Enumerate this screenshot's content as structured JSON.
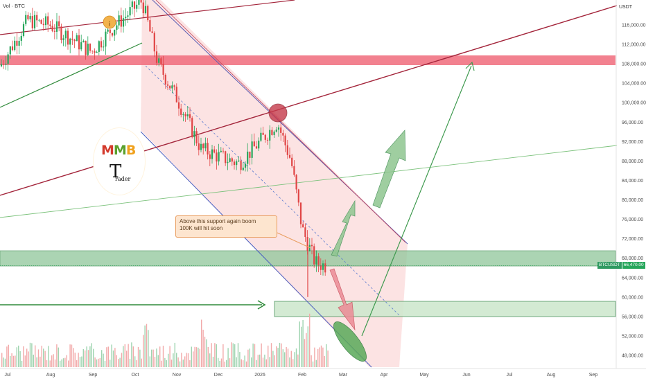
{
  "header": {
    "series_label": "Vol · BTC",
    "unit_label": "USDT"
  },
  "annotation": {
    "text_line1": "Above this support again boom",
    "text_line2": "100K will hit soon"
  },
  "price_tag": {
    "symbol": "BTCUSDT",
    "value": "66,470.00"
  },
  "logo": {
    "mark_letters": "MMB",
    "trader_letter": "T",
    "trader_rest": "rader"
  },
  "chart_data": {
    "type": "candlestick",
    "symbol": "BTCUSDT",
    "x_tick_labels": [
      "Jul",
      "Aug",
      "Sep",
      "Oct",
      "Nov",
      "Dec",
      "2026",
      "Feb",
      "Mar",
      "Apr",
      "May",
      "Jun",
      "Jul",
      "Aug",
      "Sep"
    ],
    "y_tick_labels": [
      "116,000.00",
      "112,000.00",
      "108,000.00",
      "104,000.00",
      "100,000.00",
      "96,000.00",
      "92,000.00",
      "88,000.00",
      "84,000.00",
      "80,000.00",
      "76,000.00",
      "72,000.00",
      "68,000.00",
      "64,000.00",
      "60,000.00",
      "56,000.00",
      "52,000.00",
      "48,000.00"
    ],
    "ylim": [
      46000,
      120000
    ],
    "last_price": 66470,
    "price_path": [
      {
        "x": "Jul",
        "p": 107500
      },
      {
        "x": "mid-Jul",
        "p": 117000
      },
      {
        "x": "Aug",
        "p": 116000
      },
      {
        "x": "mid-Aug",
        "p": 113500
      },
      {
        "x": "Sep",
        "p": 110500
      },
      {
        "x": "mid-Sep",
        "p": 115000
      },
      {
        "x": "Oct",
        "p": 121000
      },
      {
        "x": "mid-Oct",
        "p": 108000
      },
      {
        "x": "Nov",
        "p": 101000
      },
      {
        "x": "mid-Nov",
        "p": 90500
      },
      {
        "x": "Dec",
        "p": 89000
      },
      {
        "x": "mid-Dec",
        "p": 87500
      },
      {
        "x": "2026",
        "p": 92000
      },
      {
        "x": "mid-Jan",
        "p": 96000
      },
      {
        "x": "late-Jan",
        "p": 88000
      },
      {
        "x": "Feb",
        "p": 74000
      },
      {
        "x": "mid-Feb",
        "p": 67000
      },
      {
        "x": "late-Feb",
        "p": 66470
      }
    ],
    "zones": [
      {
        "name": "resistance",
        "from": 108000,
        "to": 110000,
        "color": "#f06b7b"
      },
      {
        "name": "support",
        "from": 66500,
        "to": 69500,
        "color": "#8fc69a"
      },
      {
        "name": "target-support",
        "from": 56000,
        "to": 59000,
        "color": "#cfe8cf"
      }
    ],
    "colors": {
      "up": "#26a65b",
      "down": "#e04545",
      "channel": "#f9d3d3",
      "trendline_up": "#b03545",
      "trend_green": "#5aa05a"
    },
    "grid": false,
    "legend": "none"
  }
}
